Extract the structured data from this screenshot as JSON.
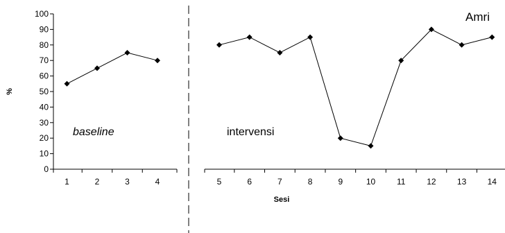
{
  "chart_data": {
    "type": "line",
    "title": "Amri",
    "xlabel": "Sesi",
    "ylabel": "%",
    "ylim": [
      0,
      100
    ],
    "yticks": [
      0,
      10,
      20,
      30,
      40,
      50,
      60,
      70,
      80,
      90,
      100
    ],
    "grid": false,
    "phases": [
      {
        "label": "baseline",
        "italic": true,
        "x": [
          1,
          2,
          3,
          4
        ],
        "y": [
          55,
          65,
          75,
          70
        ]
      },
      {
        "label": "intervensi",
        "italic": false,
        "x": [
          5,
          6,
          7,
          8,
          9,
          10,
          11,
          12,
          13,
          14
        ],
        "y": [
          80,
          85,
          75,
          85,
          20,
          15,
          70,
          90,
          80,
          85
        ]
      }
    ]
  }
}
